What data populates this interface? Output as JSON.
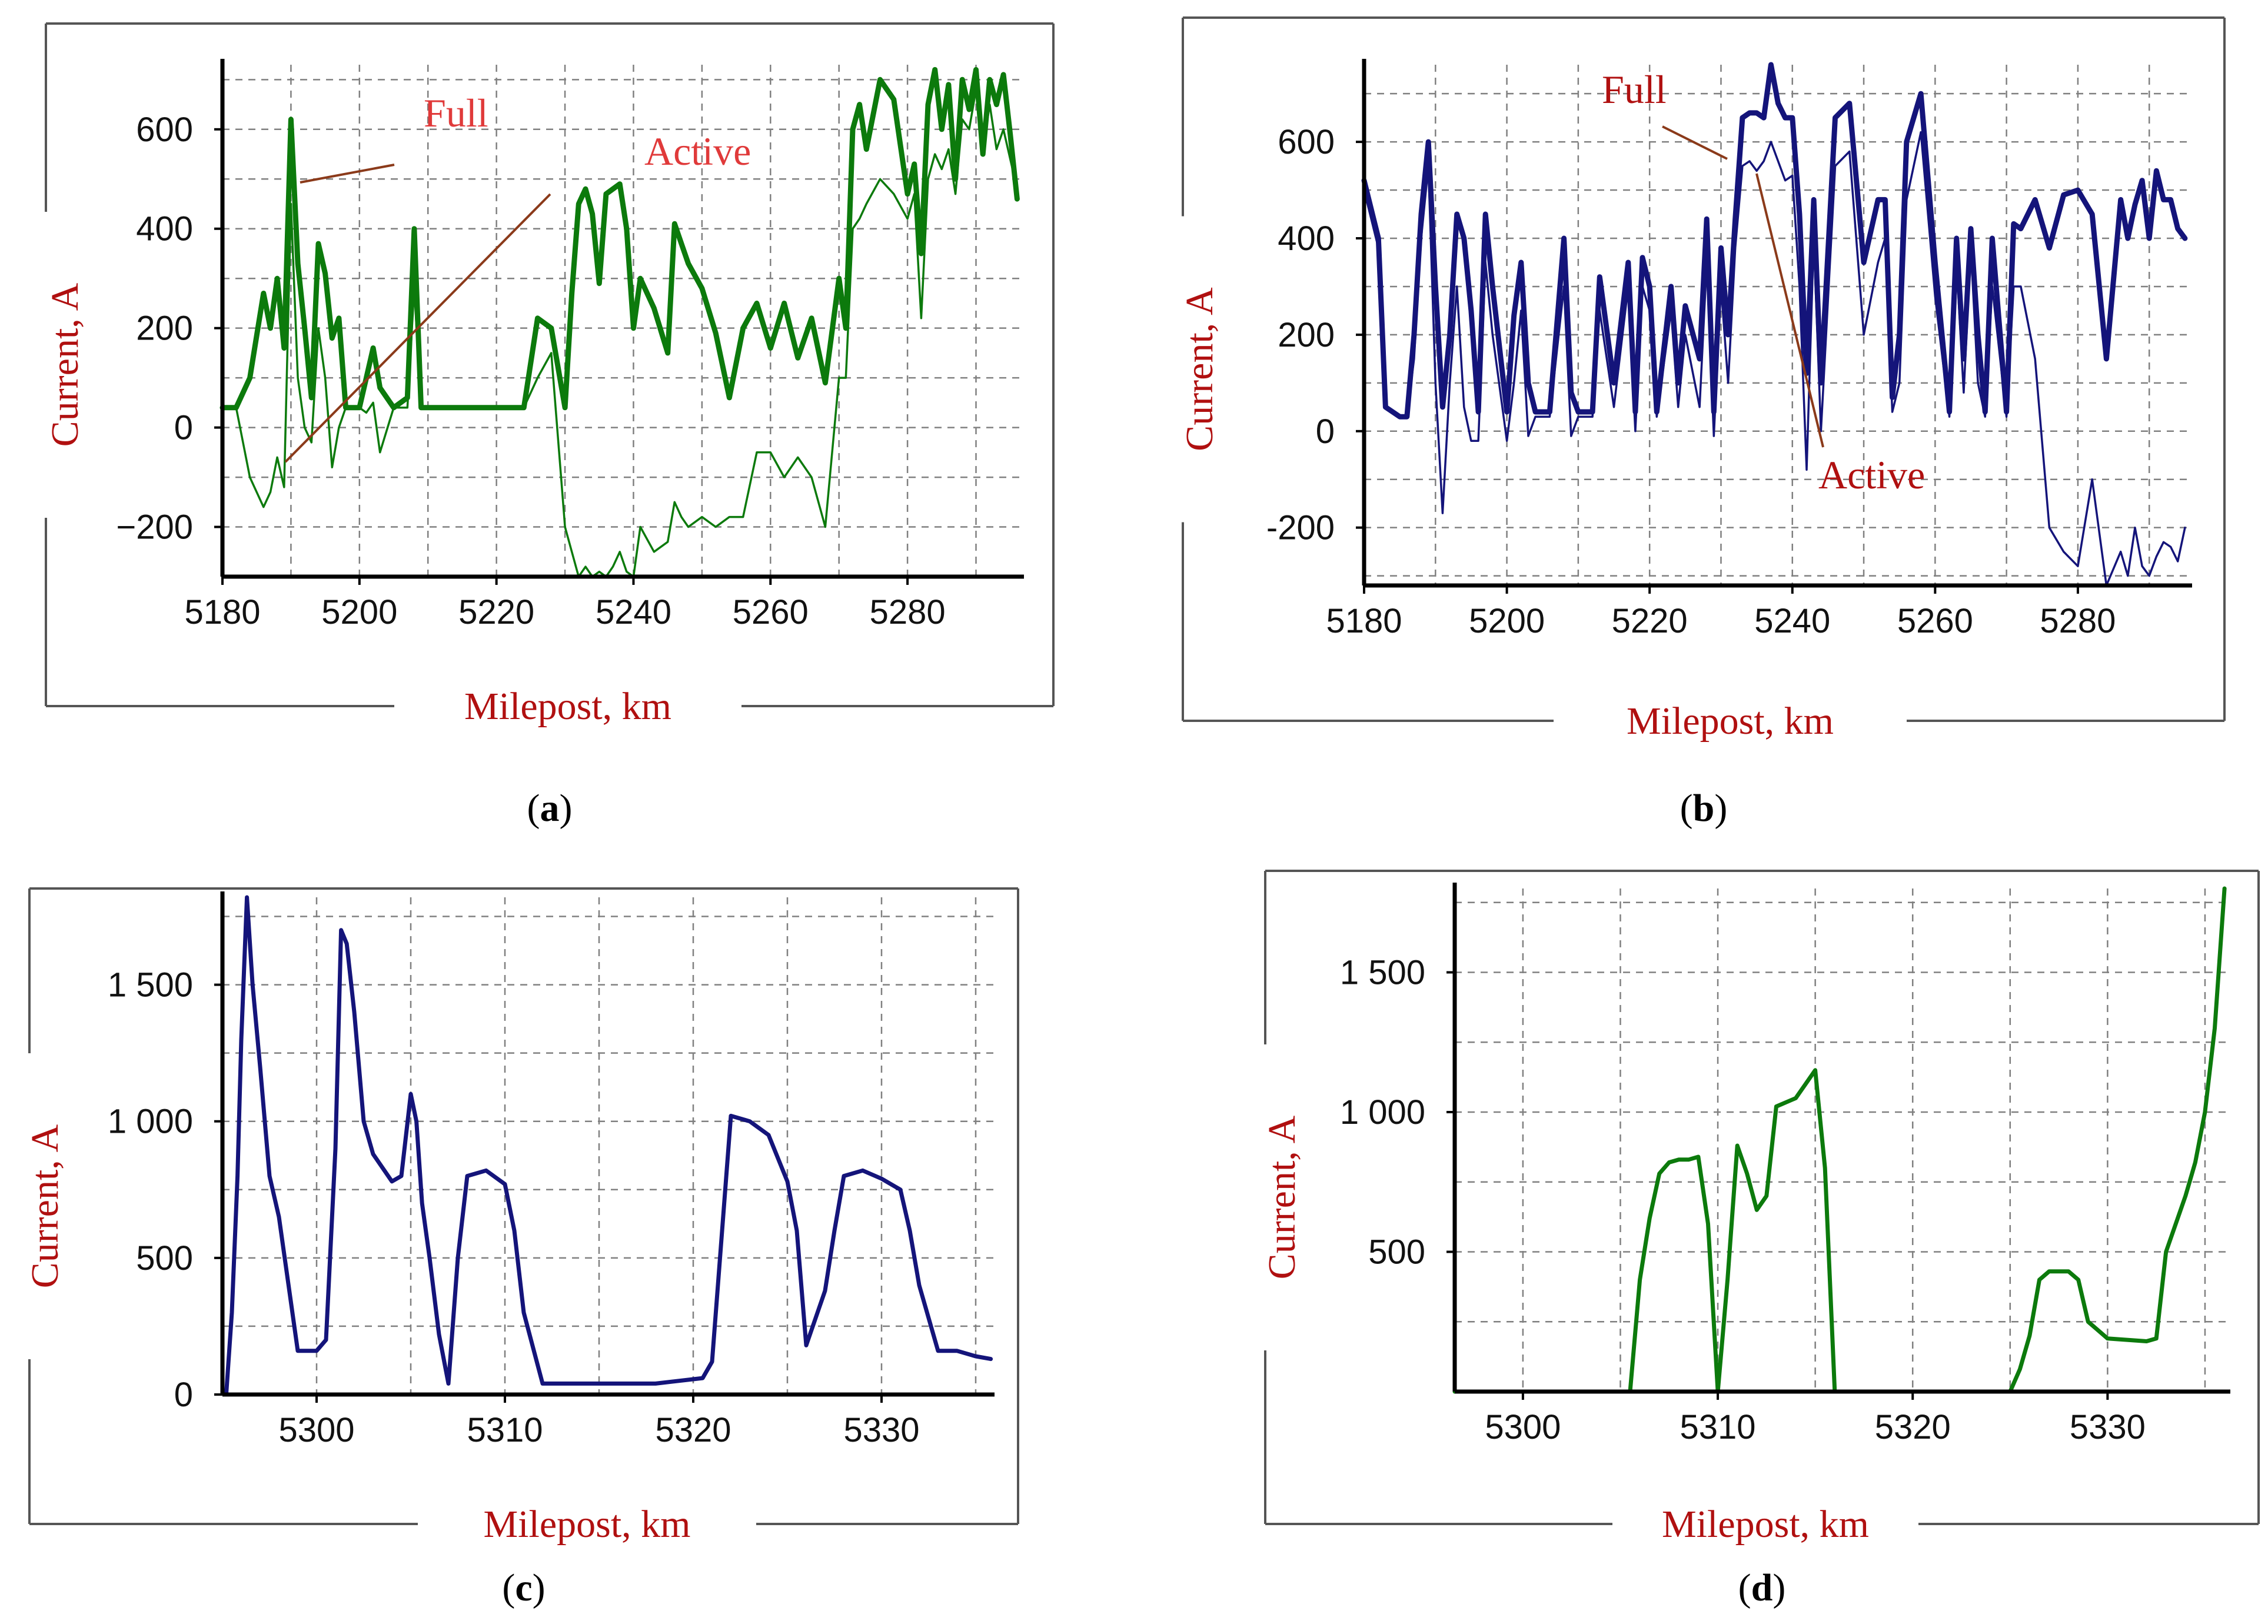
{
  "colors": {
    "green": "#0c7a0c",
    "navy": "#14147a",
    "label_red": "#b01010",
    "annot_line": "#8b3a1a",
    "grid": "#808080",
    "axis": "#000000"
  },
  "chart_data": [
    {
      "id": "a",
      "type": "line",
      "caption_letter": "a",
      "xlabel": "Milepost, km",
      "ylabel": "Current, A",
      "xlim": [
        5180,
        5297
      ],
      "ylim": [
        -300,
        730
      ],
      "xticks": [
        5180,
        5200,
        5220,
        5240,
        5260,
        5280
      ],
      "xtick_labels": [
        "5180",
        "5200",
        "5220",
        "5240",
        "5260",
        "5280"
      ],
      "yticks": [
        -200,
        0,
        200,
        400,
        600
      ],
      "ytick_labels": [
        "−200",
        "0",
        "200",
        "400",
        "600"
      ],
      "annotations": [
        {
          "text": "Full"
        },
        {
          "text": "Active"
        }
      ],
      "series": [
        {
          "name": "Full",
          "color": "#0c7a0c",
          "x": [
            5180,
            5182,
            5184,
            5186,
            5187,
            5188,
            5189,
            5190,
            5191,
            5192,
            5193,
            5194,
            5195,
            5196,
            5197,
            5198,
            5199,
            5200,
            5201,
            5202,
            5203,
            5205,
            5207,
            5208,
            5209,
            5210,
            5212,
            5216,
            5220,
            5224,
            5226,
            5228,
            5230,
            5231,
            5232,
            5233,
            5234,
            5235,
            5236,
            5237,
            5238,
            5239,
            5240,
            5241,
            5243,
            5245,
            5246,
            5247,
            5248,
            5250,
            5252,
            5254,
            5256,
            5258,
            5260,
            5262,
            5264,
            5266,
            5268,
            5270,
            5271,
            5272,
            5273,
            5274,
            5276,
            5278,
            5280,
            5281,
            5282,
            5283,
            5284,
            5285,
            5286,
            5287,
            5288,
            5289,
            5290,
            5291,
            5292,
            5293,
            5294,
            5295,
            5296
          ],
          "values": [
            40,
            40,
            100,
            270,
            200,
            300,
            160,
            620,
            330,
            200,
            60,
            370,
            310,
            180,
            220,
            40,
            40,
            40,
            100,
            160,
            80,
            40,
            60,
            400,
            40,
            40,
            40,
            40,
            40,
            40,
            220,
            200,
            40,
            270,
            450,
            480,
            430,
            290,
            470,
            480,
            490,
            400,
            200,
            300,
            240,
            150,
            410,
            370,
            330,
            280,
            190,
            60,
            200,
            250,
            160,
            250,
            140,
            220,
            90,
            300,
            200,
            600,
            650,
            560,
            700,
            660,
            470,
            530,
            350,
            650,
            720,
            600,
            690,
            500,
            700,
            640,
            720,
            550,
            700,
            650,
            710,
            590,
            460
          ]
        },
        {
          "name": "Active",
          "color": "#0c7a0c",
          "x": [
            5180,
            5182,
            5184,
            5186,
            5187,
            5188,
            5189,
            5190,
            5191,
            5192,
            5193,
            5194,
            5195,
            5196,
            5197,
            5198,
            5199,
            5200,
            5201,
            5202,
            5203,
            5205,
            5207,
            5208,
            5209,
            5210,
            5212,
            5216,
            5220,
            5224,
            5226,
            5228,
            5230,
            5231,
            5232,
            5233,
            5234,
            5235,
            5236,
            5237,
            5238,
            5239,
            5240,
            5241,
            5243,
            5245,
            5246,
            5247,
            5248,
            5250,
            5252,
            5254,
            5256,
            5258,
            5260,
            5262,
            5264,
            5266,
            5268,
            5270,
            5271,
            5272,
            5273,
            5274,
            5276,
            5278,
            5280,
            5281,
            5282,
            5283,
            5284,
            5285,
            5286,
            5287,
            5288,
            5289,
            5290,
            5291,
            5292,
            5293,
            5294,
            5295,
            5296
          ],
          "values": [
            40,
            40,
            -100,
            -160,
            -130,
            -60,
            -120,
            450,
            100,
            0,
            -30,
            200,
            100,
            -80,
            0,
            40,
            40,
            40,
            30,
            50,
            -50,
            40,
            40,
            280,
            40,
            40,
            40,
            40,
            40,
            40,
            100,
            150,
            -200,
            -250,
            -300,
            -280,
            -300,
            -290,
            -300,
            -280,
            -250,
            -290,
            -300,
            -200,
            -250,
            -230,
            -150,
            -180,
            -200,
            -180,
            -200,
            -180,
            -180,
            -50,
            -50,
            -100,
            -60,
            -100,
            -200,
            100,
            100,
            400,
            420,
            450,
            500,
            470,
            420,
            470,
            220,
            500,
            550,
            520,
            560,
            470,
            620,
            600,
            680,
            560,
            650,
            560,
            600,
            540,
            480
          ]
        }
      ]
    },
    {
      "id": "b",
      "type": "line",
      "caption_letter": "b",
      "xlabel": "Milepost, km",
      "ylabel": "Current, A",
      "xlim": [
        5180,
        5296
      ],
      "ylim": [
        -320,
        760
      ],
      "xticks": [
        5180,
        5200,
        5220,
        5240,
        5260,
        5280
      ],
      "xtick_labels": [
        "5180",
        "5200",
        "5220",
        "5240",
        "5260",
        "5280"
      ],
      "yticks": [
        -200,
        0,
        200,
        400,
        600
      ],
      "ytick_labels": [
        "-200",
        "0",
        "200",
        "400",
        "600"
      ],
      "annotations": [
        {
          "text": "Full"
        },
        {
          "text": "Active"
        }
      ],
      "series": [
        {
          "name": "Full",
          "color": "#14147a",
          "x": [
            5180,
            5182,
            5183,
            5185,
            5186,
            5187,
            5188,
            5189,
            5190,
            5191,
            5192,
            5193,
            5194,
            5195,
            5196,
            5197,
            5198,
            5200,
            5201,
            5202,
            5203,
            5204,
            5206,
            5208,
            5209,
            5210,
            5211,
            5212,
            5213,
            5215,
            5217,
            5218,
            5219,
            5220,
            5221,
            5223,
            5224,
            5225,
            5227,
            5228,
            5229,
            5230,
            5231,
            5232,
            5233,
            5234,
            5235,
            5236,
            5237,
            5238,
            5239,
            5240,
            5241,
            5242,
            5243,
            5244,
            5246,
            5248,
            5250,
            5252,
            5253,
            5254,
            5255,
            5256,
            5258,
            5260,
            5262,
            5263,
            5264,
            5265,
            5266,
            5267,
            5268,
            5270,
            5271,
            5272,
            5274,
            5276,
            5278,
            5280,
            5282,
            5284,
            5286,
            5287,
            5288,
            5289,
            5290,
            5291,
            5292,
            5293,
            5294,
            5295
          ],
          "values": [
            520,
            400,
            50,
            30,
            30,
            200,
            450,
            600,
            300,
            50,
            200,
            450,
            400,
            250,
            40,
            450,
            300,
            40,
            240,
            350,
            100,
            40,
            40,
            400,
            80,
            40,
            40,
            40,
            320,
            100,
            350,
            40,
            360,
            300,
            40,
            300,
            100,
            260,
            150,
            440,
            40,
            380,
            200,
            440,
            650,
            660,
            660,
            650,
            760,
            680,
            650,
            650,
            450,
            120,
            480,
            100,
            650,
            680,
            350,
            480,
            480,
            70,
            200,
            600,
            700,
            350,
            40,
            400,
            150,
            420,
            200,
            40,
            400,
            40,
            430,
            420,
            480,
            380,
            490,
            500,
            450,
            150,
            480,
            400,
            470,
            520,
            400,
            540,
            480,
            480,
            420,
            400
          ]
        },
        {
          "name": "Active",
          "color": "#14147a",
          "x": [
            5180,
            5182,
            5183,
            5185,
            5186,
            5187,
            5188,
            5189,
            5190,
            5191,
            5192,
            5193,
            5194,
            5195,
            5196,
            5197,
            5198,
            5200,
            5201,
            5202,
            5203,
            5204,
            5206,
            5208,
            5209,
            5210,
            5211,
            5212,
            5213,
            5215,
            5217,
            5218,
            5219,
            5220,
            5221,
            5223,
            5224,
            5225,
            5227,
            5228,
            5229,
            5230,
            5231,
            5232,
            5233,
            5234,
            5235,
            5236,
            5237,
            5238,
            5239,
            5240,
            5241,
            5242,
            5243,
            5244,
            5246,
            5248,
            5250,
            5252,
            5253,
            5254,
            5255,
            5256,
            5258,
            5260,
            5262,
            5263,
            5264,
            5265,
            5266,
            5267,
            5268,
            5270,
            5271,
            5272,
            5274,
            5276,
            5278,
            5280,
            5282,
            5284,
            5286,
            5287,
            5288,
            5289,
            5290,
            5291,
            5292,
            5293,
            5294,
            5295
          ],
          "values": [
            500,
            380,
            50,
            30,
            30,
            150,
            400,
            550,
            100,
            -170,
            100,
            300,
            50,
            -20,
            -20,
            350,
            200,
            -20,
            100,
            250,
            -10,
            30,
            30,
            300,
            -10,
            30,
            30,
            30,
            250,
            50,
            300,
            0,
            300,
            250,
            30,
            250,
            50,
            200,
            50,
            350,
            -10,
            300,
            100,
            380,
            550,
            560,
            540,
            560,
            600,
            560,
            520,
            530,
            300,
            -80,
            400,
            0,
            550,
            580,
            200,
            350,
            400,
            40,
            100,
            480,
            620,
            280,
            30,
            350,
            80,
            380,
            100,
            30,
            300,
            30,
            300,
            300,
            150,
            -200,
            -250,
            -280,
            -100,
            -320,
            -250,
            -300,
            -200,
            -280,
            -300,
            -260,
            -230,
            -240,
            -270,
            -200
          ]
        }
      ]
    },
    {
      "id": "c",
      "type": "line",
      "caption_letter": "c",
      "xlabel": "Milepost, km",
      "ylabel": "Current, A",
      "xlim": [
        5295,
        5336
      ],
      "ylim": [
        0,
        1820
      ],
      "xticks": [
        5300,
        5310,
        5320,
        5330
      ],
      "xtick_labels": [
        "5300",
        "5310",
        "5320",
        "5330"
      ],
      "yticks": [
        0,
        500,
        1000,
        1500
      ],
      "ytick_labels": [
        "0",
        "500",
        "1 000",
        "1 500"
      ],
      "series": [
        {
          "name": "Current",
          "color": "#14147a",
          "x": [
            5295.2,
            5295.5,
            5295.8,
            5296.0,
            5296.3,
            5296.6,
            5297.0,
            5297.5,
            5298.0,
            5299.0,
            5300.0,
            5300.5,
            5301.0,
            5301.3,
            5301.6,
            5302.0,
            5302.5,
            5303.0,
            5304.0,
            5304.5,
            5305.0,
            5305.3,
            5305.6,
            5306.0,
            5306.5,
            5307.0,
            5307.5,
            5308.0,
            5309.0,
            5310.0,
            5310.5,
            5311.0,
            5312.0,
            5313.0,
            5315.0,
            5318.0,
            5320.5,
            5321.0,
            5322.0,
            5323.0,
            5324.0,
            5325.0,
            5325.5,
            5326.0,
            5327.0,
            5327.5,
            5328.0,
            5329.0,
            5330.0,
            5331.0,
            5331.5,
            5332.0,
            5333.0,
            5334.0,
            5335.0,
            5335.8
          ],
          "values": [
            0,
            300,
            800,
            1300,
            1820,
            1500,
            1200,
            800,
            650,
            160,
            160,
            200,
            900,
            1700,
            1650,
            1400,
            1000,
            880,
            780,
            800,
            1100,
            1000,
            700,
            500,
            220,
            40,
            500,
            800,
            820,
            770,
            600,
            300,
            40,
            40,
            40,
            40,
            60,
            120,
            1020,
            1000,
            950,
            780,
            600,
            180,
            380,
            600,
            800,
            820,
            790,
            750,
            600,
            400,
            160,
            160,
            140,
            130
          ]
        }
      ]
    },
    {
      "id": "d",
      "type": "line",
      "caption_letter": "d",
      "xlabel": "Milepost, km",
      "ylabel": "Current, A",
      "xlim": [
        5296.5,
        5336.3
      ],
      "ylim": [
        0,
        1800
      ],
      "xticks": [
        5300,
        5310,
        5320,
        5330
      ],
      "xtick_labels": [
        "5300",
        "5310",
        "5320",
        "5330"
      ],
      "yticks": [
        500,
        1000,
        1500
      ],
      "ytick_labels": [
        "500",
        "1 000",
        "1 500"
      ],
      "series": [
        {
          "name": "Current",
          "color": "#0c7a0c",
          "x": [
            5296.5,
            5305.5,
            5306.0,
            5306.5,
            5307.0,
            5307.5,
            5308.0,
            5308.5,
            5309.0,
            5309.5,
            5310.0,
            5310.5,
            5311.0,
            5311.5,
            5312.0,
            5312.5,
            5313.0,
            5314.0,
            5314.5,
            5315.0,
            5315.5,
            5316.0,
            5325.0,
            5325.5,
            5326.0,
            5326.5,
            5327.0,
            5328.0,
            5328.5,
            5329.0,
            5330.0,
            5332.0,
            5332.5,
            5333.0,
            5334.0,
            5334.5,
            5335.0,
            5335.5,
            5336.0
          ],
          "values": [
            0,
            0,
            400,
            620,
            780,
            820,
            830,
            830,
            840,
            600,
            0,
            400,
            880,
            780,
            650,
            700,
            1020,
            1050,
            1100,
            1150,
            800,
            0,
            0,
            80,
            200,
            400,
            430,
            430,
            400,
            250,
            190,
            180,
            190,
            500,
            700,
            820,
            1000,
            1300,
            1800
          ]
        }
      ]
    }
  ]
}
